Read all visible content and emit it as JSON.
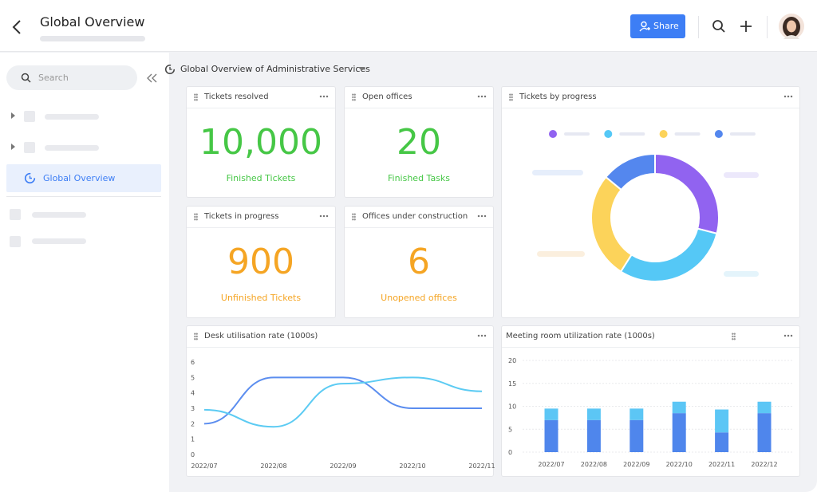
{
  "header": {
    "title": "Global Overview",
    "share_button": "Share"
  },
  "sidebar": {
    "search_placeholder": "Search",
    "active_item": "Global Overview"
  },
  "dashboard": {
    "title": "Global Overview of Administrative Services",
    "kpi_cards": [
      {
        "title": "Tickets resolved",
        "value": "10,000",
        "caption": "Finished Tickets",
        "color": "#46c746"
      },
      {
        "title": "Open offices",
        "value": "20",
        "caption": "Finished Tasks",
        "color": "#46c746"
      },
      {
        "title": "Tickets in progress",
        "value": "900",
        "caption": "Unfinished Tickets",
        "color": "#f5a524"
      },
      {
        "title": "Offices under construction",
        "value": "6",
        "caption": "Unopened offices",
        "color": "#f5a524"
      }
    ]
  },
  "chart_data": [
    {
      "type": "pie",
      "title": "Tickets by progress",
      "donut": true,
      "categories": [
        null,
        null,
        null,
        null
      ],
      "values": [
        29,
        30,
        27,
        14
      ],
      "colors": [
        "#9163f0",
        "#55c8f6",
        "#fcd35a",
        "#5487ee"
      ]
    },
    {
      "type": "line",
      "title": "Desk utilisation rate (1000s)",
      "categories": [
        "2022/07",
        "2022/08",
        "2022/09",
        "2022/10",
        "2022/11"
      ],
      "series": [
        {
          "color": "#5b8def",
          "values": [
            2,
            5,
            5,
            3,
            3
          ]
        },
        {
          "color": "#5ccbf3",
          "values": [
            2.9,
            1.8,
            4.6,
            5,
            4.1
          ]
        }
      ],
      "ylim": [
        0,
        6
      ],
      "yticks": [
        0,
        1,
        2,
        3,
        4,
        5,
        6
      ],
      "grid": false
    },
    {
      "type": "bar",
      "stacked": true,
      "title": "Meeting room utilization rate (1000s)",
      "categories": [
        "2022/07",
        "2022/08",
        "2022/09",
        "2022/10",
        "2022/11",
        "2022/12"
      ],
      "series": [
        {
          "color": "#4f86ec",
          "values": [
            7,
            7,
            7,
            8.5,
            4.3,
            8.5
          ]
        },
        {
          "color": "#5cc6f5",
          "values": [
            2.5,
            2.5,
            2.5,
            2.5,
            5,
            2.5
          ]
        }
      ],
      "ylim": [
        0,
        20
      ],
      "yticks": [
        0,
        5,
        10,
        15,
        20
      ],
      "grid": true
    }
  ]
}
